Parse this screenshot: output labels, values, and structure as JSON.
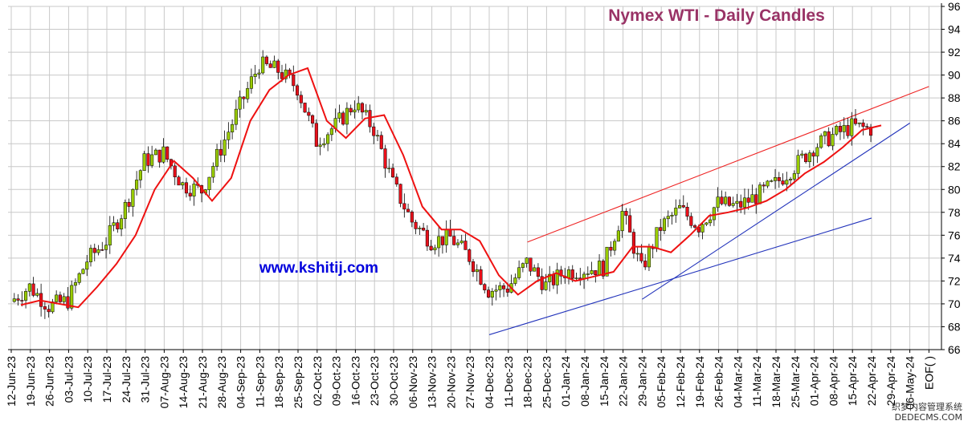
{
  "title": "Nymex  WTI - Daily Candles",
  "watermark": "www.kshitij.com",
  "corner_text": "织梦内容管理系统\nDEDECMS.COM",
  "colors": {
    "up": "#99cc00",
    "down": "#e8101a",
    "ma": "#ee1111",
    "trend_blue": "#2233bb",
    "trend_red": "#ee2222",
    "grid": "#c8c8c8"
  },
  "chart_data": {
    "type": "candlestick",
    "title": "Nymex  WTI - Daily Candles",
    "y_axis": {
      "position": "right",
      "min": 66,
      "max": 96,
      "step": 2,
      "ticks": [
        66,
        68,
        70,
        72,
        74,
        76,
        78,
        80,
        82,
        84,
        86,
        88,
        90,
        92,
        94,
        96
      ]
    },
    "x_labels": [
      "12-Jun-23",
      "19-Jun-23",
      "26-Jun-23",
      "03-Jul-23",
      "10-Jul-23",
      "17-Jul-23",
      "24-Jul-23",
      "31-Jul-23",
      "07-Aug-23",
      "14-Aug-23",
      "21-Aug-23",
      "28-Aug-23",
      "04-Sep-23",
      "11-Sep-23",
      "18-Sep-23",
      "25-Sep-23",
      "02-Oct-23",
      "09-Oct-23",
      "16-Oct-23",
      "23-Oct-23",
      "30-Oct-23",
      "06-Nov-23",
      "13-Nov-23",
      "20-Nov-23",
      "27-Nov-23",
      "04-Dec-23",
      "11-Dec-23",
      "18-Dec-23",
      "25-Dec-23",
      "01-Jan-24",
      "08-Jan-24",
      "15-Jan-24",
      "22-Jan-24",
      "29-Jan-24",
      "05-Feb-24",
      "12-Feb-24",
      "19-Feb-24",
      "26-Feb-24",
      "04-Mar-24",
      "11-Mar-24",
      "18-Mar-24",
      "25-Mar-24",
      "01-Apr-24",
      "08-Apr-24",
      "15-Apr-24",
      "22-Apr-24",
      "29-Apr-24",
      "06-May-24",
      "EOF( )"
    ],
    "grid": true,
    "weekly_close_path": [
      70.2,
      71.5,
      69.8,
      70.3,
      73.8,
      75.5,
      78.5,
      82.5,
      83.2,
      80.4,
      79.9,
      83.6,
      87.3,
      90.9,
      90.4,
      88.9,
      84.2,
      85.6,
      87.5,
      85.3,
      80.5,
      77.2,
      75.5,
      75.8,
      74.1,
      71.2,
      71.4,
      73.6,
      71.6,
      72.8,
      73.0,
      73.2,
      78.0,
      73.0,
      76.7,
      78.3,
      76.8,
      78.8,
      78.5,
      79.4,
      80.5,
      82.0,
      83.7,
      84.7,
      85.5,
      85.3
    ],
    "series": [
      {
        "name": "",
        "type": "moving_average",
        "values": [
          69.9,
          70.3,
          70.0,
          69.7,
          71.5,
          73.5,
          76.0,
          80.0,
          82.5,
          81.0,
          79.0,
          81.0,
          86.0,
          88.7,
          90.0,
          90.6,
          86.0,
          84.5,
          86.2,
          86.5,
          83.0,
          78.5,
          76.5,
          76.5,
          75.5,
          72.5,
          70.8,
          72.0,
          72.7,
          72.0,
          72.4,
          72.8,
          75.0,
          75.0,
          74.5,
          76.0,
          77.7,
          78.0,
          78.4,
          79.0,
          80.0,
          81.4,
          82.4,
          83.7,
          85.2,
          85.6
        ]
      }
    ],
    "trendlines": [
      {
        "color": "red",
        "from": {
          "x": "18-Dec-23",
          "y": 75.4
        },
        "to": {
          "x": "EOF( )",
          "y": 89.0
        }
      },
      {
        "color": "blue",
        "from": {
          "x": "04-Dec-23",
          "y": 67.3
        },
        "to": {
          "x": "22-Apr-24",
          "y": 77.5
        }
      },
      {
        "color": "blue",
        "from": {
          "x": "29-Jan-24",
          "y": 70.4
        },
        "to": {
          "x": "06-May-24",
          "y": 85.8
        }
      }
    ]
  }
}
